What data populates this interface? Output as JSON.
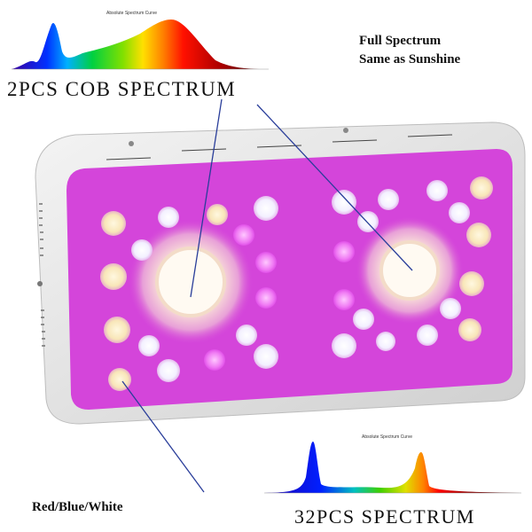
{
  "top_spectrum": {
    "title": "Absolute Spectrum Curve"
  },
  "bottom_spectrum": {
    "title": "Absolute Spectrum Curve"
  },
  "labels": {
    "cob_spectrum": "2PCS  COB  SPECTRUM",
    "full_spectrum_line1": "Full Spectrum",
    "full_spectrum_line2": "Same as Sunshine",
    "red_blue_white": "Red/Blue/White",
    "pcs32_spectrum": "32PCS  SPECTRUM"
  },
  "colors": {
    "panel_face": "#d23ad8",
    "housing": "#e6e6e6",
    "pointer_line": "#2a3e9a"
  }
}
